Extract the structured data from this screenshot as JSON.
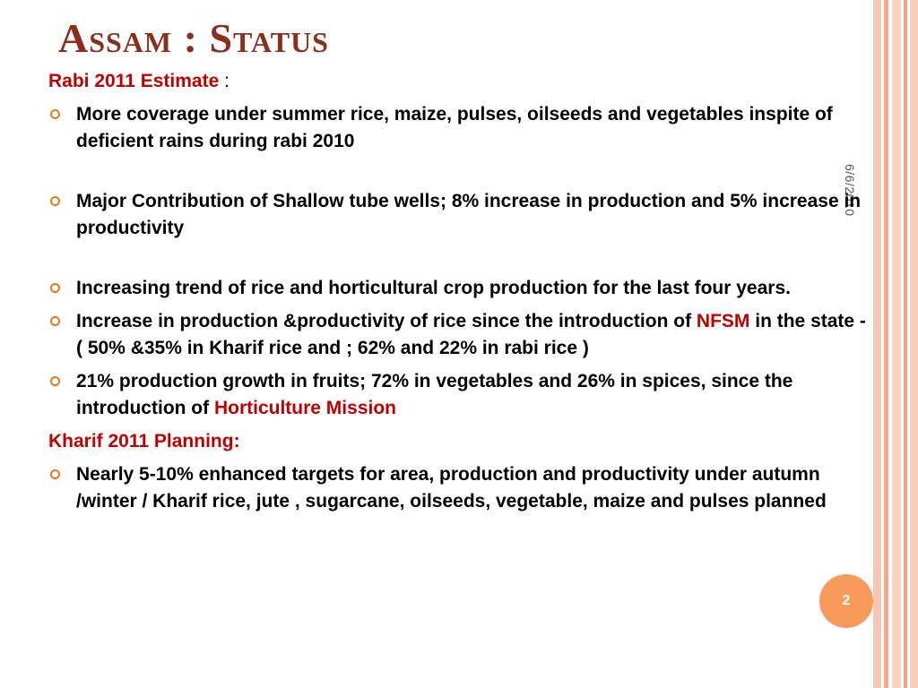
{
  "slide": {
    "title": "Assam : Status",
    "date": "6/6/2010",
    "page_number": "2",
    "colors": {
      "title": "#8b2e1c",
      "highlight": "#c00000",
      "bullet": "#e87722",
      "page_badge": "#f79a5a"
    }
  },
  "rabi": {
    "heading": "Rabi 2011 Estimate",
    "heading_suffix": " :",
    "bullets": [
      {
        "text": "More coverage under summer rice, maize, pulses, oilseeds and vegetables inspite of deficient rains during rabi 2010"
      },
      {
        "text": "Major Contribution of Shallow tube wells;  8% increase in production and 5% increase in productivity"
      },
      {
        "text": "Increasing  trend of rice and horticultural crop production for the last four years."
      },
      {
        "pre": "Increase in production &productivity of rice since the introduction of ",
        "highlight": "NFSM",
        "post": " in the state - ( 50% &35%  in Kharif  rice  and ;   62% and 22% in rabi rice )"
      },
      {
        "pre": "21% production growth in fruits; 72% in vegetables and 26% in spices, since the introduction of ",
        "highlight": "Horticulture Mission"
      }
    ]
  },
  "kharif": {
    "heading": "Kharif  2011  Planning:",
    "bullets": [
      {
        "text": "Nearly 5-10% enhanced targets for area, production and productivity under autumn /winter / Kharif rice, jute , sugarcane, oilseeds, vegetable, maize and pulses planned"
      }
    ]
  }
}
